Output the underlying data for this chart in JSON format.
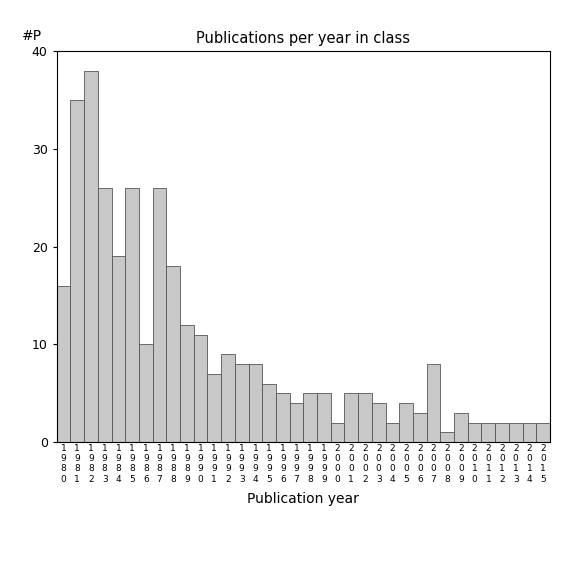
{
  "title": "Publications per year in class",
  "xlabel": "Publication year",
  "ylabel": "#P",
  "ylim": [
    0,
    40
  ],
  "yticks": [
    0,
    10,
    20,
    30,
    40
  ],
  "bar_color": "#c8c8c8",
  "bar_edgecolor": "#555555",
  "years": [
    1980,
    1981,
    1982,
    1983,
    1984,
    1985,
    1986,
    1987,
    1988,
    1989,
    1990,
    1991,
    1992,
    1993,
    1994,
    1995,
    1996,
    1997,
    1998,
    1999,
    2000,
    2001,
    2002,
    2003,
    2004,
    2005,
    2006,
    2007,
    2008,
    2009,
    2010,
    2011,
    2012,
    2013,
    2014,
    2015
  ],
  "values": [
    16,
    35,
    38,
    26,
    19,
    26,
    10,
    26,
    18,
    12,
    11,
    7,
    9,
    8,
    8,
    6,
    5,
    4,
    5,
    5,
    2,
    5,
    5,
    4,
    2,
    4,
    3,
    8,
    1,
    3,
    2,
    2,
    2,
    2,
    2,
    2
  ]
}
